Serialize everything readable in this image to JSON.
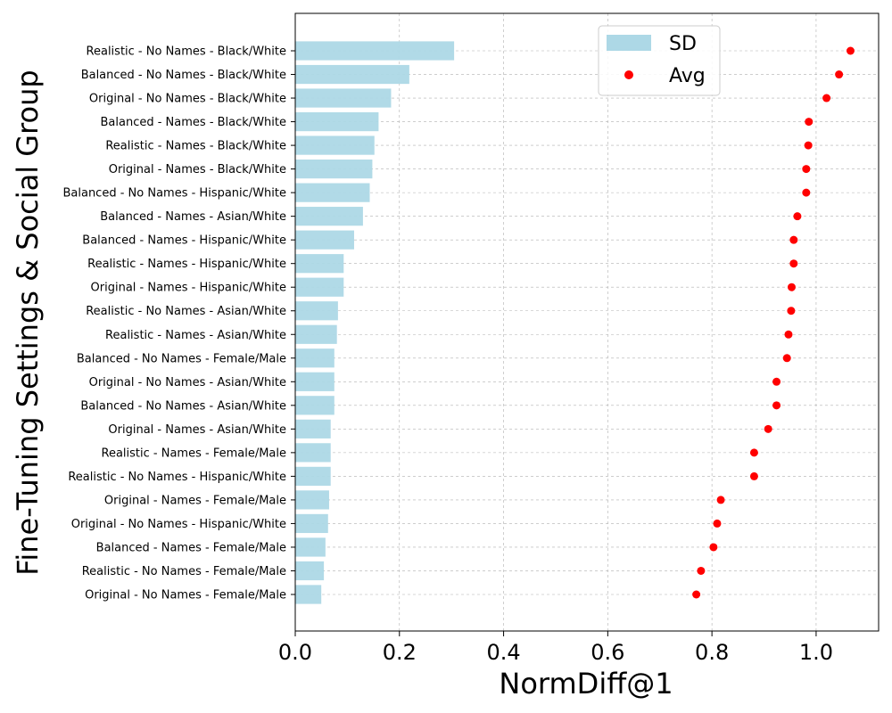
{
  "chart_data": {
    "type": "bar",
    "orientation": "horizontal",
    "xlabel": "NormDiff@1",
    "ylabel": "Fine-Tuning Settings & Social Group",
    "xlim": [
      0,
      1.12
    ],
    "xticks": [
      "0.0",
      "0.2",
      "0.4",
      "0.6",
      "0.8",
      "1.0"
    ],
    "grid": true,
    "legend_position": "top-right",
    "categories": [
      "Realistic - No Names - Black/White",
      "Balanced - No Names - Black/White",
      "Original - No Names - Black/White",
      "Balanced - Names - Black/White",
      "Realistic - Names - Black/White",
      "Original - Names - Black/White",
      "Balanced - No Names - Hispanic/White",
      "Balanced - Names - Asian/White",
      "Balanced - Names - Hispanic/White",
      "Realistic - Names - Hispanic/White",
      "Original - Names - Hispanic/White",
      "Realistic - No Names - Asian/White",
      "Realistic - Names - Asian/White",
      "Balanced - No Names - Female/Male",
      "Original - No Names - Asian/White",
      "Balanced - No Names - Asian/White",
      "Original - Names - Asian/White",
      "Realistic - Names - Female/Male",
      "Realistic - No Names - Hispanic/White",
      "Original - Names - Female/Male",
      "Original - No Names - Hispanic/White",
      "Balanced - Names - Female/Male",
      "Realistic - No Names - Female/Male",
      "Original - No Names - Female/Male"
    ],
    "series": [
      {
        "name": "SD",
        "kind": "bar",
        "color": "#add8e6",
        "values": [
          0.305,
          0.219,
          0.184,
          0.16,
          0.152,
          0.148,
          0.143,
          0.13,
          0.113,
          0.093,
          0.093,
          0.082,
          0.08,
          0.075,
          0.075,
          0.075,
          0.068,
          0.068,
          0.068,
          0.065,
          0.063,
          0.058,
          0.055,
          0.05
        ]
      },
      {
        "name": "Avg",
        "kind": "point",
        "color": "#ff0000",
        "values": [
          1.066,
          1.044,
          1.02,
          0.986,
          0.985,
          0.981,
          0.981,
          0.964,
          0.957,
          0.957,
          0.953,
          0.952,
          0.947,
          0.944,
          0.924,
          0.924,
          0.908,
          0.881,
          0.881,
          0.817,
          0.81,
          0.803,
          0.779,
          0.77
        ]
      }
    ]
  }
}
